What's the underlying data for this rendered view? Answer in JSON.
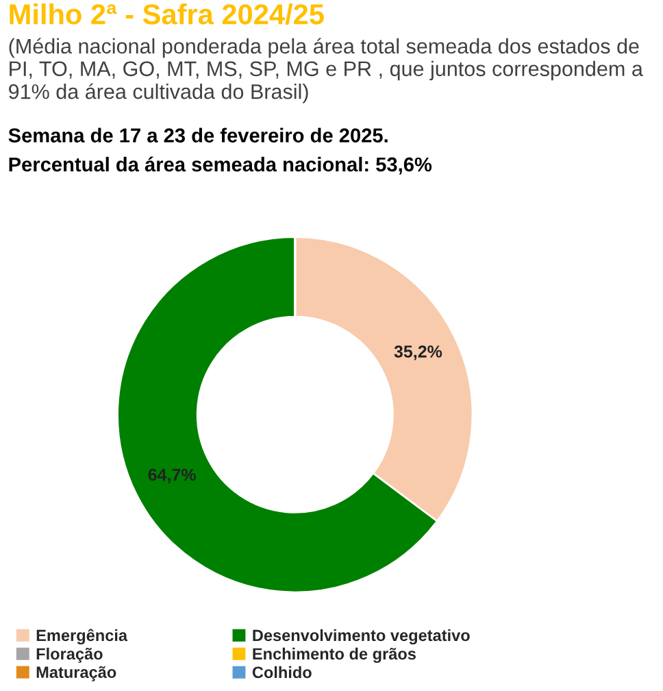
{
  "chart_data": {
    "type": "donut",
    "title": "Milho 2ª - Safra 2024/25",
    "subtitle": "(Média nacional ponderada pela área total semeada dos estados de PI, TO, MA, GO, MT, MS, SP, MG e PR , que juntos correspondem a 91% da área cultivada do Brasil)",
    "annotations": [
      "Semana de 17 a 23 de fevereiro de 2025.",
      "Percentual da área semeada nacional: 53,6%"
    ],
    "categories": [
      "Emergência",
      "Desenvolvimento vegetativo",
      "Floração",
      "Enchimento de grãos",
      "Maturação",
      "Colhido"
    ],
    "values": [
      35.2,
      64.7,
      0,
      0,
      0,
      0
    ],
    "value_labels": [
      "35,2%",
      "64,7%",
      null,
      null,
      null,
      null
    ],
    "colors": [
      "#f8cbad",
      "#008000",
      "#a5a5a5",
      "#ffc000",
      "#e08a1e",
      "#5b9bd5"
    ],
    "legend": "bottom"
  }
}
